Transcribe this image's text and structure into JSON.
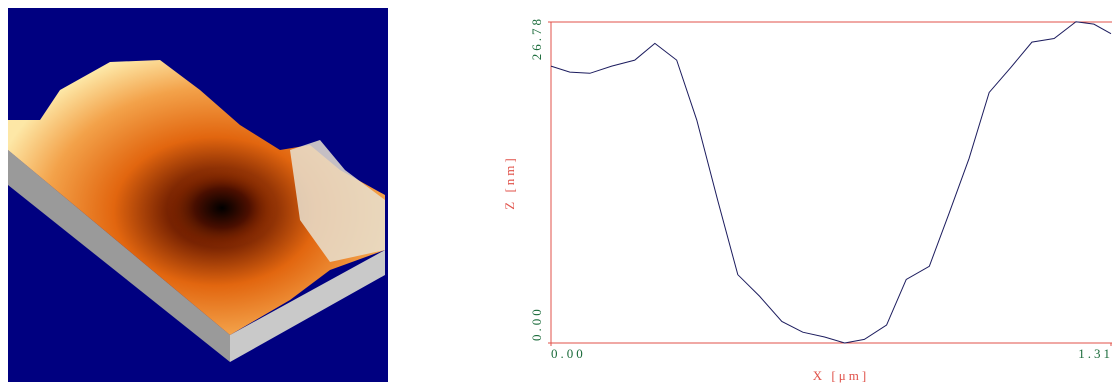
{
  "chart_data": {
    "type": "line",
    "x": [
      0,
      0.044,
      0.091,
      0.142,
      0.196,
      0.243,
      0.294,
      0.341,
      0.39,
      0.437,
      0.488,
      0.54,
      0.589,
      0.64,
      0.687,
      0.733,
      0.785,
      0.831,
      0.885,
      0.931,
      0.978,
      1.025,
      1.076,
      1.125,
      1.177,
      1.228,
      1.27,
      1.31
    ],
    "series": [
      {
        "color": "#1c1c5e",
        "values": [
          23.1,
          22.6,
          22.5,
          23.1,
          23.6,
          25.0,
          23.6,
          18.6,
          11.9,
          5.7,
          3.9,
          1.8,
          0.9,
          0.5,
          0.0,
          0.3,
          1.5,
          5.3,
          6.4,
          10.8,
          15.4,
          20.9,
          23.0,
          25.1,
          25.4,
          26.8,
          26.6,
          25.8
        ]
      }
    ],
    "xlabel": "X [μm]",
    "ylabel": "Z [nm]",
    "xlim": [
      0,
      1.31
    ],
    "ylim": [
      0,
      26.78
    ],
    "xticks": [
      {
        "value": 0,
        "label": "0.00"
      },
      1.31
    ],
    "yticks": [
      {
        "value": 0,
        "label": "0.00"
      },
      26.78
    ],
    "frame_color": "#e0524a"
  }
}
